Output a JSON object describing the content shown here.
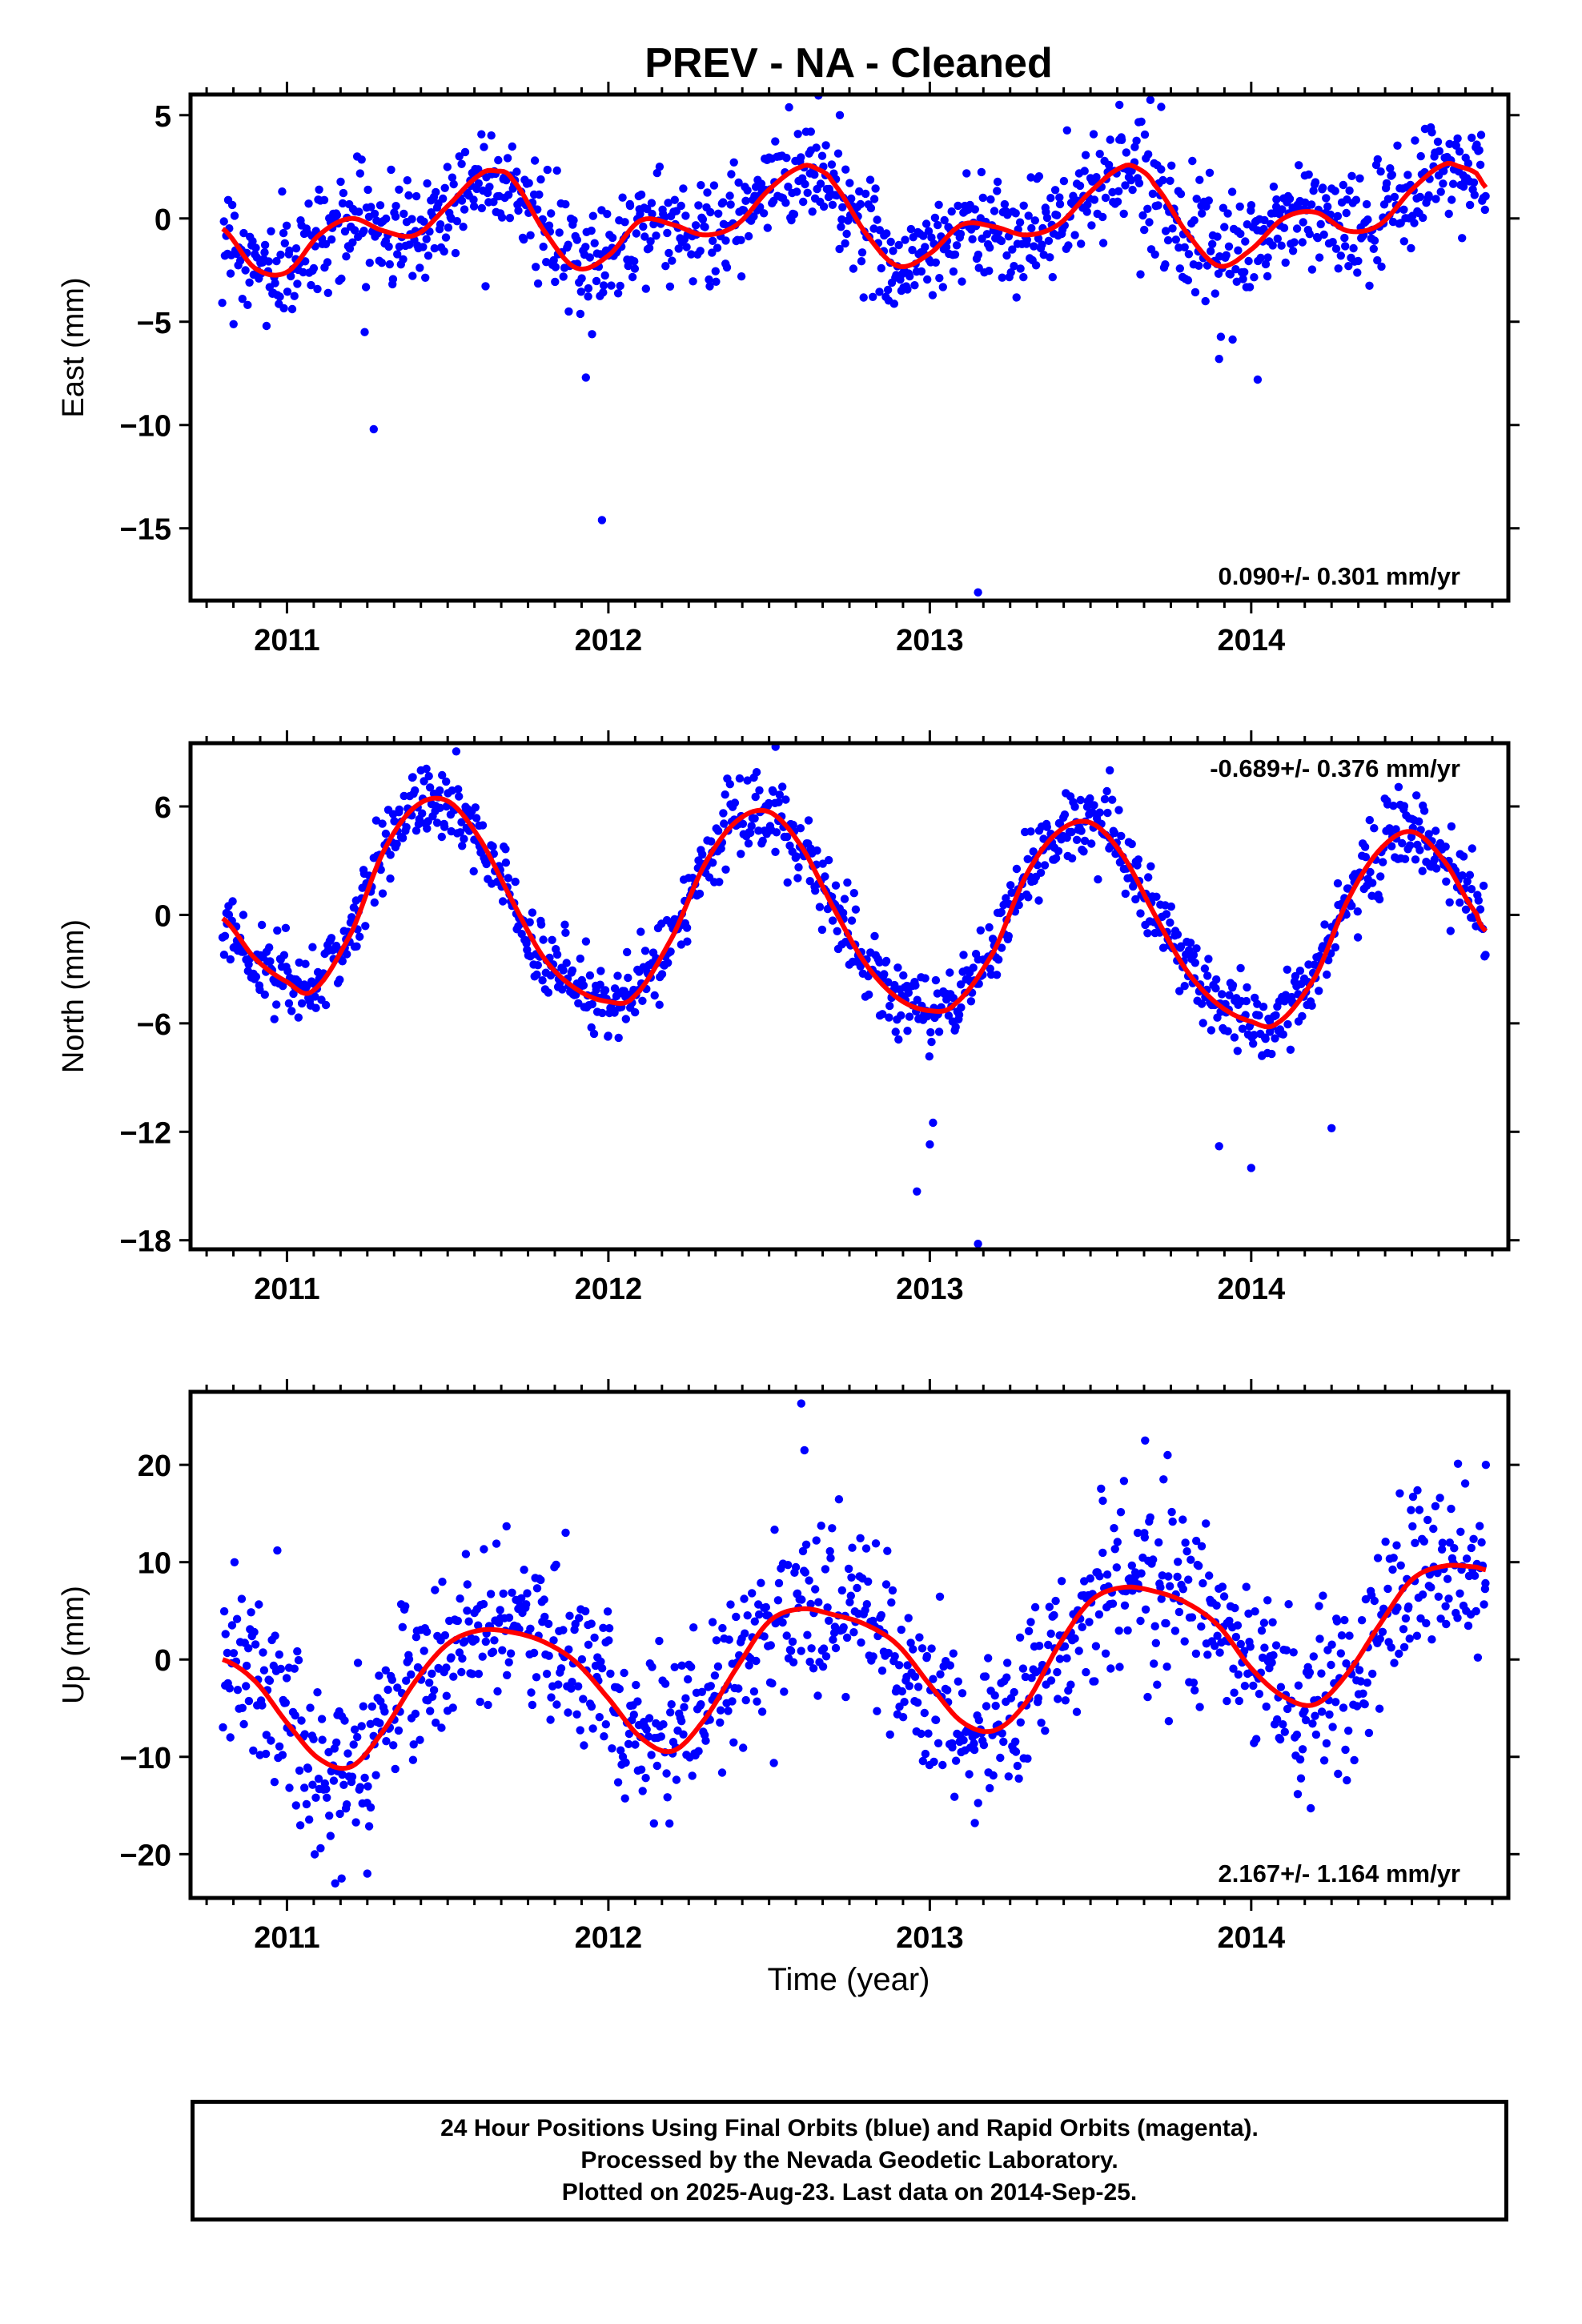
{
  "title": "PREV  - NA - Cleaned",
  "xlabel": "Time (year)",
  "colors": {
    "points": "#0000ff",
    "fit": "#ff0000",
    "frame": "#000000"
  },
  "footer": {
    "line1": "24 Hour Positions Using Final Orbits (blue) and Rapid Orbits (magenta).",
    "line2": "Processed by the Nevada Geodetic Laboratory.",
    "line3": "Plotted on 2025-Aug-23. Last data on 2014-Sep-25."
  },
  "chart_data": [
    {
      "type": "scatter",
      "component": "east",
      "ylabel": "East (mm)",
      "xlim": [
        2010.7,
        2014.8
      ],
      "ylim": [
        -18.5,
        6
      ],
      "xticks": [
        2011,
        2012,
        2013,
        2014
      ],
      "yticks": [
        5,
        0,
        -5,
        -10,
        -15
      ],
      "rate_label": "0.090+/- 0.301 mm/yr",
      "rate_position": "bottom-right",
      "fit": {
        "x": [
          2010.8,
          2010.9,
          2011.0,
          2011.1,
          2011.2,
          2011.3,
          2011.4,
          2011.5,
          2011.6,
          2011.65,
          2011.7,
          2011.8,
          2011.9,
          2012.0,
          2012.1,
          2012.2,
          2012.3,
          2012.4,
          2012.5,
          2012.6,
          2012.65,
          2012.7,
          2012.8,
          2012.9,
          2013.0,
          2013.1,
          2013.2,
          2013.3,
          2013.4,
          2013.5,
          2013.6,
          2013.65,
          2013.7,
          2013.8,
          2013.9,
          2014.0,
          2014.1,
          2014.2,
          2014.3,
          2014.4,
          2014.5,
          2014.6,
          2014.65,
          2014.7,
          2014.73
        ],
        "y": [
          -0.5,
          -2.4,
          -2.6,
          -0.8,
          0.0,
          -0.6,
          -0.8,
          0.6,
          2.1,
          2.3,
          1.9,
          -0.6,
          -2.4,
          -1.8,
          -0.1,
          -0.3,
          -0.8,
          -0.3,
          1.4,
          2.5,
          2.4,
          1.7,
          -0.7,
          -2.3,
          -1.7,
          -0.3,
          -0.4,
          -0.8,
          -0.3,
          1.3,
          2.5,
          2.4,
          1.6,
          -0.7,
          -2.3,
          -1.5,
          0.0,
          0.3,
          -0.6,
          -0.3,
          1.4,
          2.6,
          2.5,
          2.2,
          1.5
        ]
      },
      "points": {
        "base_x": [
          2010.8,
          2010.9,
          2011.0,
          2011.1,
          2011.2,
          2011.3,
          2011.4,
          2011.5,
          2011.6,
          2011.65,
          2011.7,
          2011.8,
          2011.9,
          2012.0,
          2012.1,
          2012.2,
          2012.3,
          2012.4,
          2012.5,
          2012.6,
          2012.65,
          2012.7,
          2012.8,
          2012.9,
          2013.0,
          2013.1,
          2013.2,
          2013.3,
          2013.4,
          2013.5,
          2013.6,
          2013.65,
          2013.7,
          2013.8,
          2013.9,
          2014.0,
          2014.1,
          2014.2,
          2014.3,
          2014.4,
          2014.5,
          2014.6,
          2014.65,
          2014.7,
          2014.73
        ],
        "base_y": [
          -0.5,
          -2.4,
          -2.6,
          -0.8,
          0.0,
          -0.6,
          -0.8,
          0.6,
          2.1,
          2.3,
          1.9,
          -0.6,
          -2.4,
          -1.8,
          -0.1,
          -0.3,
          -0.8,
          -0.3,
          1.4,
          2.5,
          2.4,
          1.7,
          -0.7,
          -2.3,
          -1.7,
          -0.3,
          -0.4,
          -0.8,
          -0.3,
          1.3,
          2.5,
          2.4,
          1.6,
          -0.7,
          -2.3,
          -1.5,
          0.0,
          0.3,
          -0.6,
          -0.3,
          1.4,
          2.6,
          2.5,
          2.2,
          1.5
        ],
        "scatter_sd": 1.3,
        "count": 1150,
        "outliers": [
          [
            2011.27,
            -10.2
          ],
          [
            2011.98,
            -14.6
          ],
          [
            2013.15,
            -18.1
          ],
          [
            2012.72,
            5.0
          ],
          [
            2013.59,
            5.5
          ],
          [
            2013.72,
            5.4
          ],
          [
            2011.93,
            -7.7
          ],
          [
            2014.02,
            -7.8
          ],
          [
            2013.9,
            -6.8
          ],
          [
            2012.63,
            4.2
          ]
        ]
      }
    },
    {
      "type": "scatter",
      "component": "north",
      "ylabel": "North (mm)",
      "xlim": [
        2010.7,
        2014.8
      ],
      "ylim": [
        -18.5,
        9.5
      ],
      "xticks": [
        2011,
        2012,
        2013,
        2014
      ],
      "yticks": [
        6,
        0,
        -6,
        -12,
        -18
      ],
      "rate_label": "-0.689+/- 0.376 mm/yr",
      "rate_position": "top-right",
      "fit": {
        "x": [
          2010.8,
          2010.9,
          2011.0,
          2011.08,
          2011.2,
          2011.3,
          2011.4,
          2011.5,
          2011.6,
          2011.7,
          2011.8,
          2011.9,
          2012.0,
          2012.08,
          2012.2,
          2012.3,
          2012.4,
          2012.5,
          2012.6,
          2012.7,
          2012.8,
          2012.9,
          2013.0,
          2013.08,
          2013.2,
          2013.3,
          2013.4,
          2013.5,
          2013.6,
          2013.7,
          2013.8,
          2013.9,
          2014.0,
          2014.08,
          2014.2,
          2014.3,
          2014.4,
          2014.5,
          2014.6,
          2014.7,
          2014.73
        ],
        "y": [
          -0.2,
          -2.4,
          -3.7,
          -4.2,
          -1.0,
          3.5,
          6.0,
          6.3,
          4.2,
          0.8,
          -2.4,
          -4.1,
          -4.8,
          -4.5,
          -1.2,
          2.8,
          5.2,
          5.7,
          3.8,
          0.4,
          -2.7,
          -4.6,
          -5.3,
          -4.9,
          -2.0,
          2.2,
          4.6,
          5.1,
          3.3,
          0.0,
          -3.1,
          -5.0,
          -5.9,
          -6.0,
          -3.4,
          0.8,
          3.6,
          4.6,
          3.0,
          0.1,
          -0.9
        ]
      },
      "points": {
        "base_x": [
          2010.8,
          2010.9,
          2011.0,
          2011.08,
          2011.2,
          2011.3,
          2011.4,
          2011.5,
          2011.6,
          2011.7,
          2011.8,
          2011.9,
          2012.0,
          2012.08,
          2012.2,
          2012.3,
          2012.4,
          2012.5,
          2012.6,
          2012.7,
          2012.8,
          2012.9,
          2013.0,
          2013.08,
          2013.2,
          2013.3,
          2013.4,
          2013.5,
          2013.6,
          2013.7,
          2013.8,
          2013.9,
          2014.0,
          2014.08,
          2014.2,
          2014.3,
          2014.4,
          2014.5,
          2014.6,
          2014.7,
          2014.73
        ],
        "base_y": [
          -0.2,
          -2.4,
          -3.7,
          -4.2,
          -1.0,
          3.5,
          6.0,
          6.3,
          4.2,
          0.8,
          -2.4,
          -4.1,
          -4.8,
          -4.5,
          -1.2,
          2.8,
          5.2,
          5.7,
          3.8,
          0.4,
          -2.7,
          -4.6,
          -5.3,
          -4.9,
          -2.0,
          2.2,
          4.6,
          5.1,
          3.3,
          0.0,
          -3.1,
          -5.0,
          -5.9,
          -6.0,
          -3.4,
          0.8,
          3.6,
          4.6,
          3.0,
          0.1,
          -0.9
        ],
        "scatter_sd": 1.1,
        "count": 1150,
        "outliers": [
          [
            2012.52,
            9.3
          ],
          [
            2012.96,
            -15.3
          ],
          [
            2013.15,
            -18.2
          ],
          [
            2013.0,
            -12.7
          ],
          [
            2013.01,
            -11.5
          ],
          [
            2014.0,
            -14.0
          ],
          [
            2013.9,
            -12.8
          ],
          [
            2014.25,
            -11.8
          ],
          [
            2013.56,
            8.0
          ],
          [
            2011.39,
            7.6
          ]
        ]
      }
    },
    {
      "type": "scatter",
      "component": "up",
      "ylabel": "Up (mm)",
      "xlim": [
        2010.7,
        2014.8
      ],
      "ylim": [
        -24.5,
        27.5
      ],
      "xticks": [
        2011,
        2012,
        2013,
        2014
      ],
      "yticks": [
        20,
        10,
        0,
        -10,
        -20
      ],
      "rate_label": "2.167+/- 1.164 mm/yr",
      "rate_position": "bottom-right",
      "fit": {
        "x": [
          2010.8,
          2010.9,
          2011.0,
          2011.1,
          2011.2,
          2011.3,
          2011.4,
          2011.5,
          2011.6,
          2011.7,
          2011.8,
          2011.9,
          2012.0,
          2012.1,
          2012.2,
          2012.3,
          2012.4,
          2012.5,
          2012.6,
          2012.7,
          2012.8,
          2012.9,
          2013.0,
          2013.1,
          2013.2,
          2013.3,
          2013.4,
          2013.5,
          2013.6,
          2013.7,
          2013.8,
          2013.9,
          2014.0,
          2014.1,
          2014.2,
          2014.3,
          2014.4,
          2014.5,
          2014.6,
          2014.7,
          2014.73
        ],
        "y": [
          0.0,
          -2.2,
          -6.5,
          -10.2,
          -11.0,
          -7.3,
          -2.2,
          1.6,
          3.0,
          2.8,
          1.8,
          -0.3,
          -4.0,
          -8.0,
          -9.4,
          -6.1,
          -0.8,
          3.9,
          5.2,
          4.6,
          3.6,
          1.5,
          -2.6,
          -6.4,
          -7.3,
          -4.4,
          1.4,
          6.0,
          7.4,
          7.0,
          5.8,
          3.4,
          -0.9,
          -3.8,
          -4.6,
          -1.4,
          3.6,
          8.2,
          9.6,
          9.5,
          9.2
        ]
      },
      "points": {
        "base_x": [
          2010.8,
          2010.9,
          2011.0,
          2011.1,
          2011.2,
          2011.3,
          2011.4,
          2011.5,
          2011.6,
          2011.7,
          2011.8,
          2011.9,
          2012.0,
          2012.1,
          2012.2,
          2012.3,
          2012.4,
          2012.5,
          2012.6,
          2012.7,
          2012.8,
          2012.9,
          2013.0,
          2013.1,
          2013.2,
          2013.3,
          2013.4,
          2013.5,
          2013.6,
          2013.7,
          2013.8,
          2013.9,
          2014.0,
          2014.1,
          2014.2,
          2014.3,
          2014.4,
          2014.5,
          2014.6,
          2014.7,
          2014.73
        ],
        "base_y": [
          0.0,
          -2.2,
          -6.5,
          -10.2,
          -11.0,
          -7.3,
          -2.2,
          1.6,
          3.0,
          2.8,
          1.8,
          -0.3,
          -4.0,
          -8.0,
          -9.4,
          -6.1,
          -0.8,
          3.9,
          5.2,
          4.6,
          3.6,
          1.5,
          -2.6,
          -6.4,
          -7.3,
          -4.4,
          1.4,
          6.0,
          7.4,
          7.0,
          5.8,
          3.4,
          -0.9,
          -3.8,
          -4.6,
          -1.4,
          3.6,
          8.2,
          9.6,
          9.5,
          9.2
        ],
        "scatter_sd": 4.3,
        "count": 1150,
        "outliers": [
          [
            2012.6,
            26.3
          ],
          [
            2012.61,
            21.5
          ],
          [
            2013.67,
            22.5
          ],
          [
            2013.74,
            21.0
          ],
          [
            2010.97,
            11.2
          ],
          [
            2014.73,
            20.0
          ],
          [
            2011.15,
            -23.0
          ],
          [
            2011.25,
            -22.0
          ],
          [
            2011.17,
            -22.5
          ],
          [
            2013.14,
            -16.8
          ]
        ]
      }
    }
  ]
}
